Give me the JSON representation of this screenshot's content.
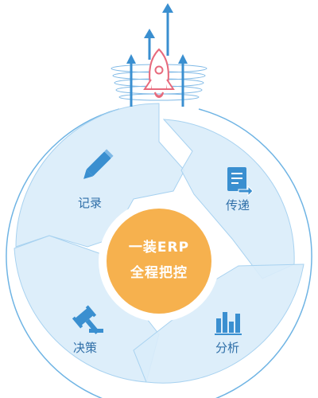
{
  "center": {
    "line1": "一装ERP",
    "line2": "全程把控"
  },
  "segments": [
    {
      "label": "记录",
      "icon": "pencil-icon"
    },
    {
      "label": "传递",
      "icon": "document-transfer-icon"
    },
    {
      "label": "决策",
      "icon": "gavel-icon"
    },
    {
      "label": "分析",
      "icon": "bar-chart-icon"
    }
  ],
  "header": {
    "icon": "rocket-icon",
    "arrows": "up-arrow-icon"
  },
  "colors": {
    "segment_fill": "#d9ecf9",
    "segment_edge": "#a8d2f0",
    "ring": "#6fb4e4",
    "icon_blue": "#3a8fd0",
    "center_fill": "#f6b14e",
    "rocket": "#e76a7c",
    "label": "#2f6fa8"
  }
}
